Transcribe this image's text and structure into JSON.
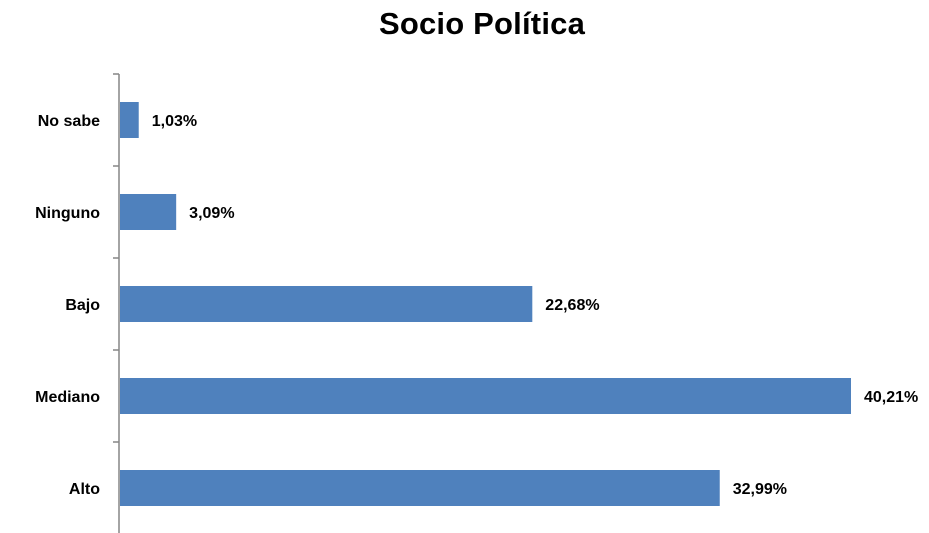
{
  "chart_data": {
    "type": "bar",
    "orientation": "horizontal",
    "title": "Socio Política",
    "xlabel": "",
    "ylabel": "",
    "categories": [
      "No sabe",
      "Ninguno",
      "Bajo",
      "Mediano",
      "Alto"
    ],
    "values": [
      1.03,
      3.09,
      22.68,
      40.21,
      32.99
    ],
    "value_labels": [
      "1,03%",
      "3,09%",
      "22,68%",
      "40,21%",
      "32,99%"
    ],
    "xlim": [
      0,
      40.21
    ],
    "grid": false,
    "legend": "none",
    "bar_color": "#4F81BD",
    "axis_color": "#868686"
  }
}
